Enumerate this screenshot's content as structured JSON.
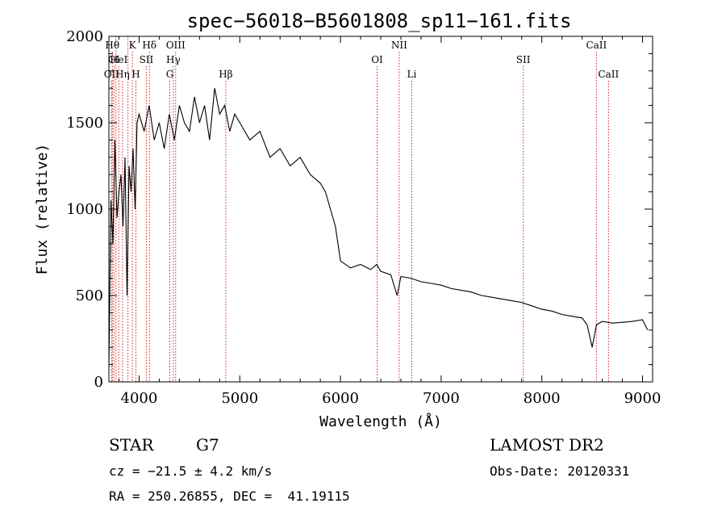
{
  "chart_data": {
    "type": "line",
    "title": "spec−56018−B5601808_sp11−161.fits",
    "xlabel": "Wavelength (Å)",
    "ylabel": "Flux (relative)",
    "xlim": [
      3700,
      9100
    ],
    "ylim": [
      0,
      2000
    ],
    "x_ticks": [
      4000,
      5000,
      6000,
      7000,
      8000,
      9000
    ],
    "y_ticks": [
      0,
      500,
      1000,
      1500,
      2000
    ],
    "grid": false,
    "series": [
      {
        "x": [
          3700,
          3720,
          3740,
          3760,
          3780,
          3800,
          3820,
          3840,
          3860,
          3880,
          3900,
          3920,
          3940,
          3960,
          3980,
          4000,
          4050,
          4100,
          4150,
          4200,
          4250,
          4300,
          4350,
          4400,
          4450,
          4500,
          4550,
          4600,
          4650,
          4700,
          4750,
          4800,
          4850,
          4900,
          4950,
          5000,
          5100,
          5200,
          5300,
          5400,
          5500,
          5600,
          5700,
          5800,
          5850,
          5900,
          5950,
          6000,
          6100,
          6200,
          6300,
          6360,
          6400,
          6500,
          6563,
          6600,
          6700,
          6800,
          6900,
          7000,
          7100,
          7200,
          7300,
          7400,
          7500,
          7600,
          7700,
          7800,
          7900,
          8000,
          8100,
          8200,
          8300,
          8400,
          8450,
          8500,
          8542,
          8600,
          8700,
          8800,
          8900,
          9000,
          9050
        ],
        "y": [
          80,
          1050,
          800,
          1400,
          950,
          1100,
          1200,
          900,
          1300,
          500,
          1250,
          1100,
          1350,
          1000,
          1500,
          1550,
          1450,
          1600,
          1400,
          1500,
          1350,
          1550,
          1400,
          1600,
          1500,
          1450,
          1650,
          1500,
          1600,
          1400,
          1700,
          1550,
          1600,
          1450,
          1550,
          1500,
          1400,
          1450,
          1300,
          1350,
          1250,
          1300,
          1200,
          1150,
          1100,
          1000,
          900,
          700,
          660,
          680,
          650,
          680,
          640,
          620,
          500,
          610,
          600,
          580,
          570,
          560,
          540,
          530,
          520,
          500,
          490,
          480,
          470,
          460,
          440,
          420,
          410,
          390,
          380,
          370,
          330,
          200,
          330,
          350,
          340,
          345,
          350,
          360,
          300
        ]
      }
    ],
    "lines": [
      {
        "x": 3734,
        "label": "Hθ",
        "row": 0
      },
      {
        "x": 3727,
        "label": "OII",
        "row": 2
      },
      {
        "x": 3750,
        "label": "OI",
        "row": 1
      },
      {
        "x": 3770,
        "label": "",
        "row": -1
      },
      {
        "x": 3798,
        "label": "HeI",
        "row": 1
      },
      {
        "x": 3835,
        "label": "Hη",
        "row": 2
      },
      {
        "x": 3889,
        "label": "",
        "row": -1
      },
      {
        "x": 3933,
        "label": "K",
        "row": 0
      },
      {
        "x": 3968,
        "label": "H",
        "row": 2
      },
      {
        "x": 4072,
        "label": "SII",
        "row": 1
      },
      {
        "x": 4102,
        "label": "Hδ",
        "row": 0
      },
      {
        "x": 4305,
        "label": "G",
        "row": 2
      },
      {
        "x": 4340,
        "label": "Hγ",
        "row": 1
      },
      {
        "x": 4363,
        "label": "OIII",
        "row": 0
      },
      {
        "x": 4861,
        "label": "Hβ",
        "row": 2
      },
      {
        "x": 6364,
        "label": "OI",
        "row": 1
      },
      {
        "x": 6583,
        "label": "NII",
        "row": 0
      },
      {
        "x": 6708,
        "label": "Li",
        "row": 2
      },
      {
        "x": 7815,
        "label": "SII",
        "row": 1
      },
      {
        "x": 8542,
        "label": "CaII",
        "row": 0
      },
      {
        "x": 8662,
        "label": "CaII",
        "row": 2
      }
    ],
    "line_color": "#cc2222",
    "series_color": "#000000"
  },
  "info": {
    "class": "STAR",
    "subclass": "G7",
    "survey": "LAMOST DR2",
    "velocity": "cz = −21.5 ± 4.2 km/s",
    "obs_date": "Obs-Date: 20120331",
    "coords": "RA = 250.26855, DEC =  41.19115"
  }
}
